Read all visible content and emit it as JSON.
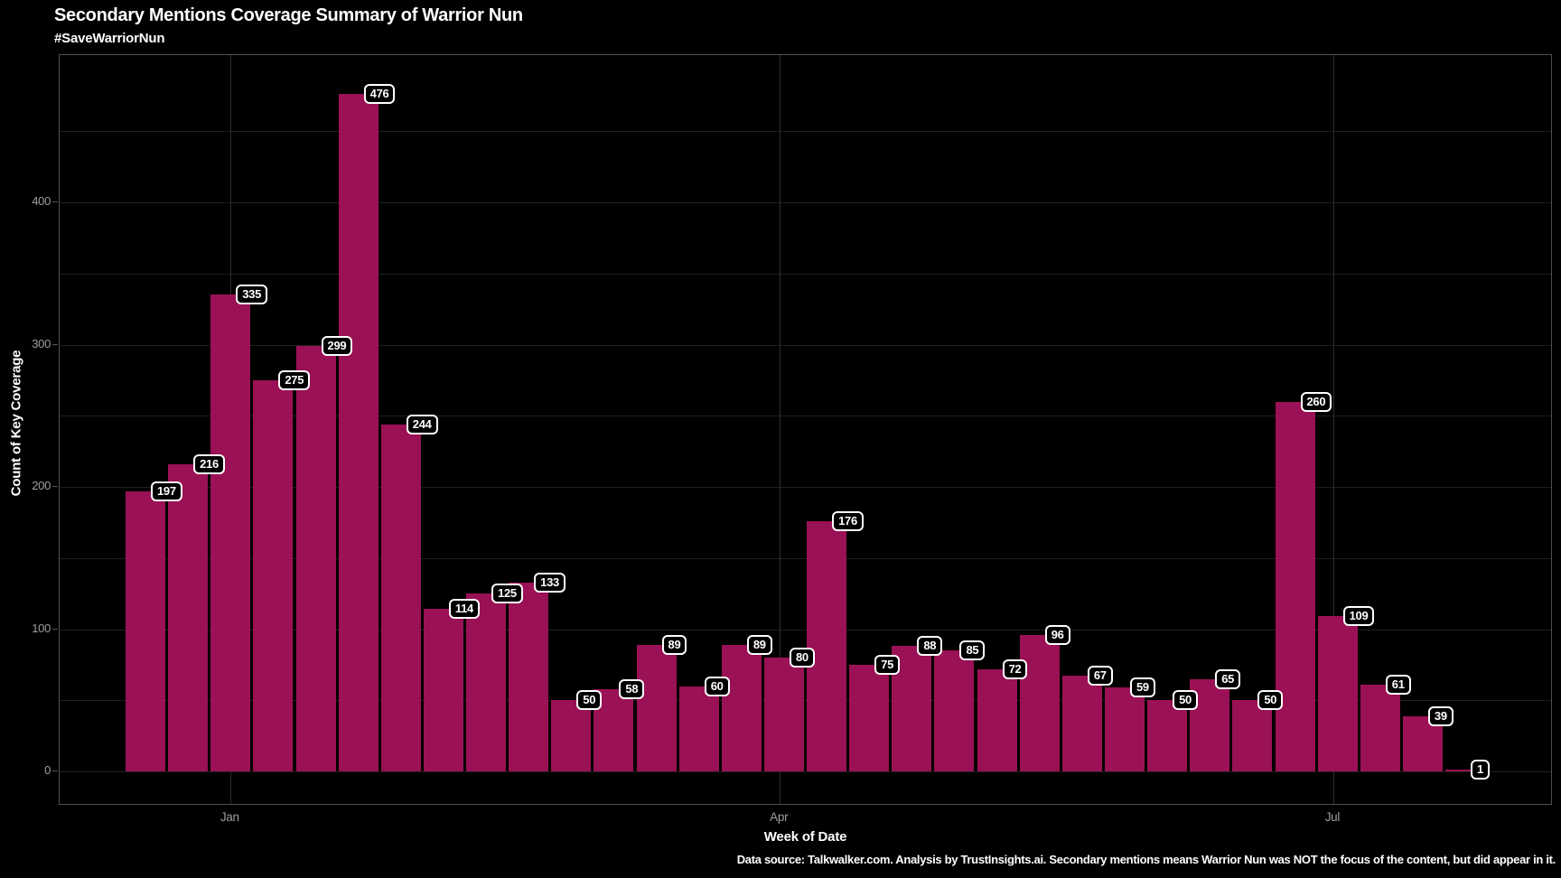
{
  "title": "Secondary Mentions Coverage Summary of Warrior Nun",
  "subtitle": "#SaveWarriorNun",
  "footer": "Data source: Talkwalker.com. Analysis by TrustInsights.ai. Secondary mentions means Warrior Nun was NOT the focus of the content, but did appear in it.",
  "colors": {
    "background": "#000000",
    "bar": "#9b1155",
    "gridline": "#1f1f1f",
    "month_gridline": "#2e2e2e",
    "axis_border": "#4f4f4f",
    "tick_text": "#9e9e9e",
    "label_box_border": "#ffffff",
    "label_box_fill": "#000000",
    "text": "#ffffff"
  },
  "chart_data": {
    "type": "bar",
    "title": "Secondary Mentions Coverage Summary of Warrior Nun",
    "subtitle": "#SaveWarriorNun",
    "xlabel": "Week of Date",
    "ylabel": "Count of Key Coverage",
    "values": [
      197,
      216,
      335,
      275,
      299,
      476,
      244,
      114,
      125,
      133,
      50,
      58,
      89,
      60,
      89,
      80,
      176,
      75,
      88,
      85,
      72,
      96,
      67,
      59,
      50,
      65,
      50,
      260,
      109,
      61,
      39,
      1
    ],
    "bar_value_labels": [
      "197",
      "216",
      "335",
      "275",
      "299",
      "476",
      "244",
      "114",
      "125",
      "133",
      "50",
      "58",
      "89",
      "60",
      "89",
      "80",
      "176",
      "75",
      "88",
      "85",
      "72",
      "96",
      "67",
      "59",
      "50",
      "65",
      "50",
      "260",
      "109",
      "61",
      "39",
      "1"
    ],
    "x_axis": {
      "label": "Week of Date",
      "unit": "week",
      "month_ticks": [
        {
          "label": "Jan",
          "bar_index": 2.0
        },
        {
          "label": "Apr",
          "bar_index": 14.9
        },
        {
          "label": "Jul",
          "bar_index": 27.9
        }
      ]
    },
    "y_axis": {
      "label": "Count of Key Coverage",
      "tick_values": [
        0,
        100,
        200,
        300,
        400
      ],
      "gridline_step": 50,
      "max_gridline": 450,
      "ylim": [
        0,
        503
      ]
    },
    "grid": "on",
    "legend": "none"
  }
}
